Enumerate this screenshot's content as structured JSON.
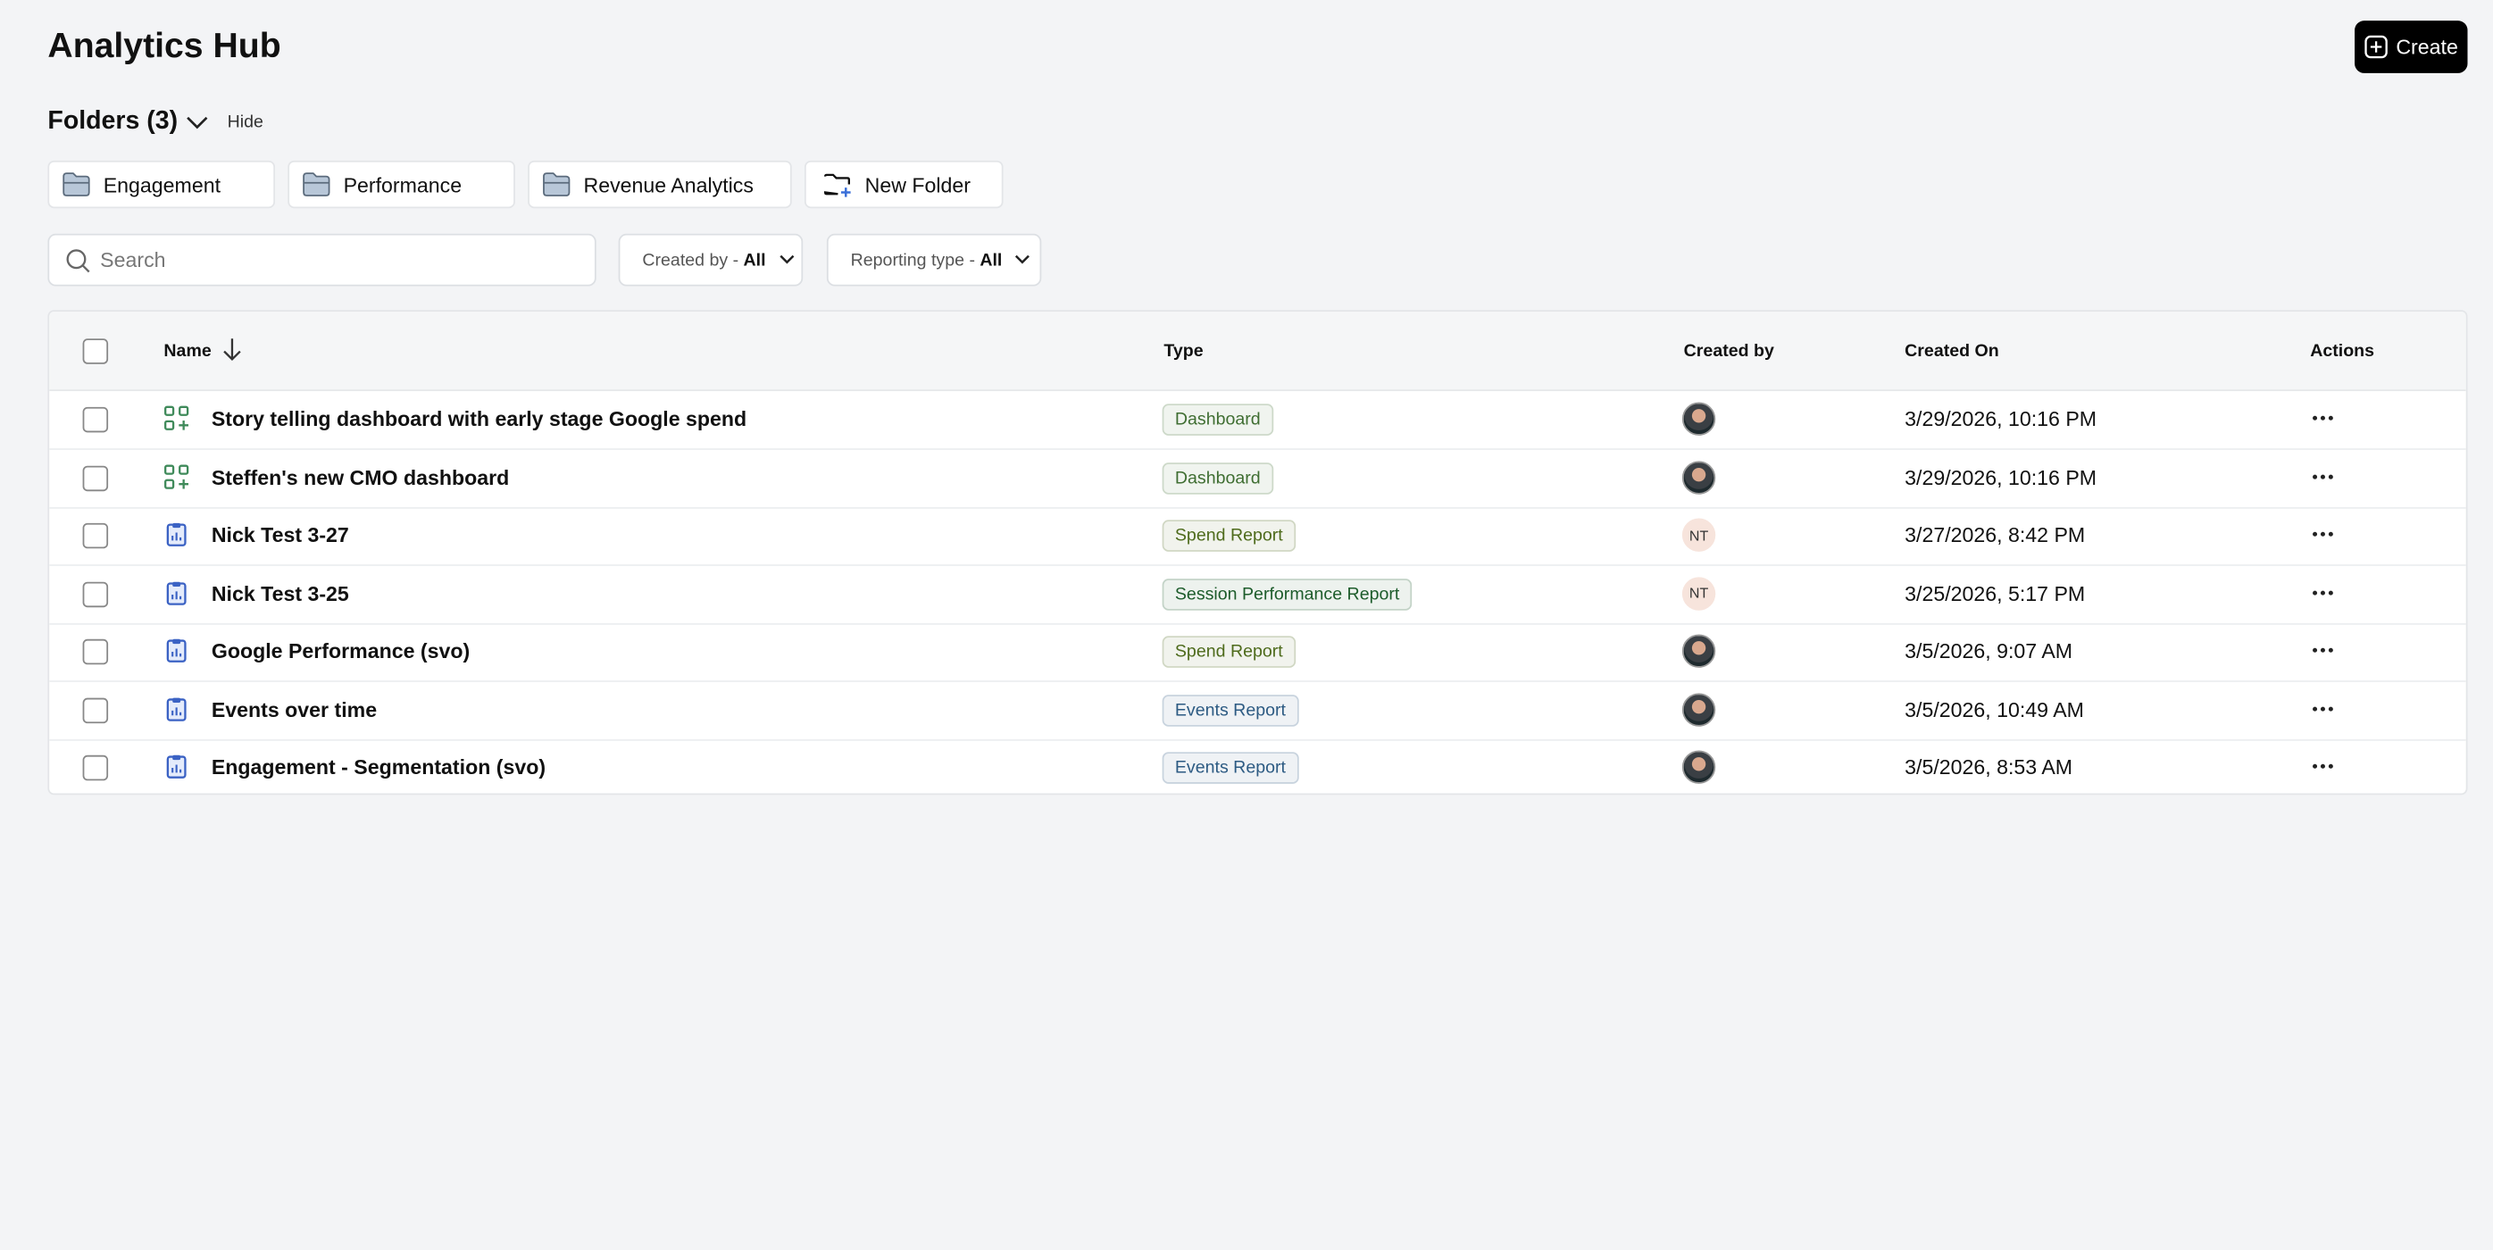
{
  "header": {
    "title": "Analytics Hub",
    "create": "Create"
  },
  "folders": {
    "title": "Folders (3)",
    "toggle": "Hide",
    "items": [
      "Engagement",
      "Performance",
      "Revenue Analytics"
    ],
    "new_folder": "New Folder"
  },
  "filters": {
    "search_placeholder": "Search",
    "created_by": {
      "label": "Created by -",
      "value": "All"
    },
    "reporting_type": {
      "label": "Reporting type -",
      "value": "All"
    }
  },
  "table": {
    "columns": [
      "Name",
      "Type",
      "Created by",
      "Created On",
      "Actions"
    ],
    "rows": [
      {
        "name": "Story telling dashboard with early stage Google spend",
        "type": "Dashboard",
        "type_color": "#3f6e32",
        "icon": "dashboard",
        "creator": null,
        "created_on": "3/29/2026, 10:16 PM"
      },
      {
        "name": "Steffen's new CMO dashboard",
        "type": "Dashboard",
        "type_color": "#3f6e32",
        "icon": "dashboard",
        "creator": null,
        "created_on": "3/29/2026, 10:16 PM"
      },
      {
        "name": "Nick Test 3-27",
        "type": "Spend Report",
        "type_color": "#4e6b1c",
        "icon": "report",
        "creator": "NT",
        "created_on": "3/27/2026, 8:42 PM"
      },
      {
        "name": "Nick Test 3-25",
        "type": "Session Performance Report",
        "type_color": "#1d5c2b",
        "icon": "report",
        "creator": "NT",
        "created_on": "3/25/2026, 5:17 PM"
      },
      {
        "name": "Google Performance (svo)",
        "type": "Spend Report",
        "type_color": "#4e6b1c",
        "icon": "report",
        "creator": null,
        "created_on": "3/5/2026, 9:07 AM"
      },
      {
        "name": "Events over time",
        "type": "Events Report",
        "type_color": "#2d5b83",
        "icon": "report",
        "creator": null,
        "created_on": "3/5/2026, 10:49 AM"
      },
      {
        "name": "Engagement - Segmentation (svo)",
        "type": "Events Report",
        "type_color": "#2d5b83",
        "icon": "report",
        "creator": null,
        "created_on": "3/5/2026, 8:53 AM"
      }
    ]
  }
}
